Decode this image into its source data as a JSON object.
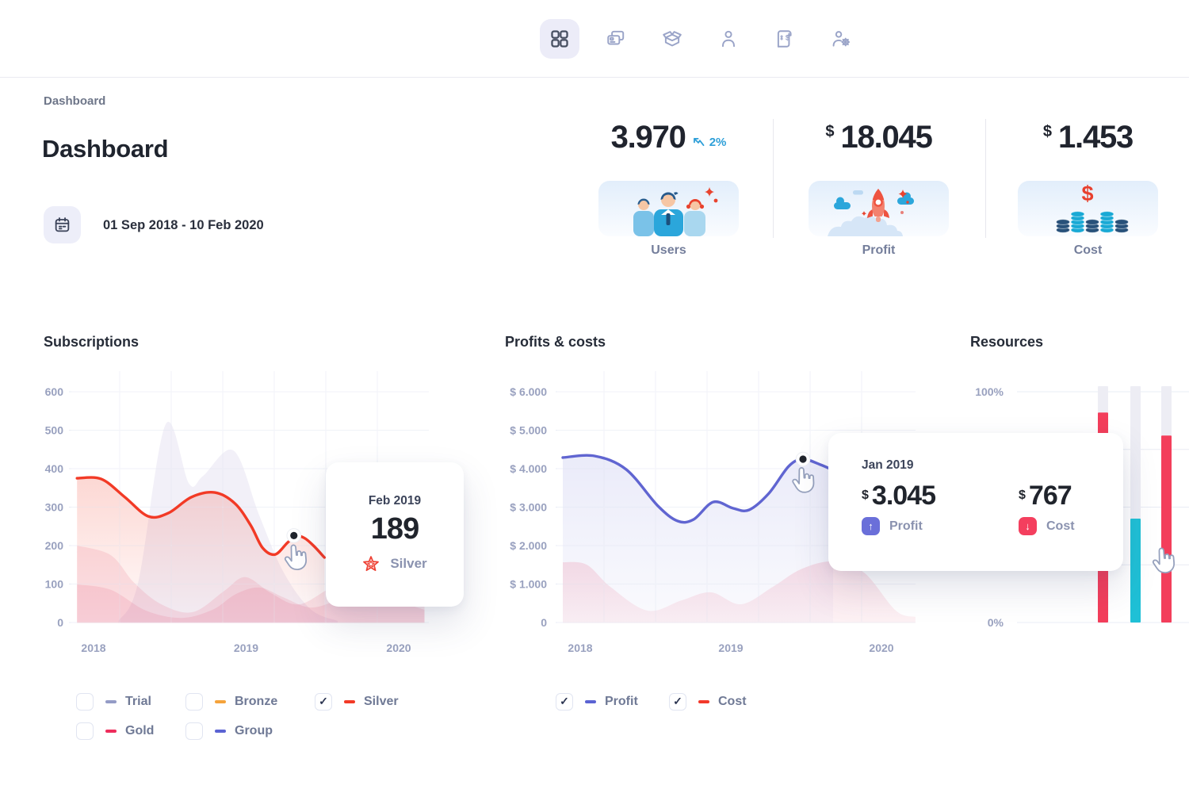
{
  "ui": {
    "checkmark": "✓"
  },
  "theme": {
    "accent_red": "#f23a26",
    "accent_crimson": "#ee2d5c",
    "accent_indigo": "#5b63d3",
    "accent_cyan": "#1fc0d6",
    "accent_orange": "#f5a33b",
    "muted_blue": "#949cc6",
    "delta_blue": "#2e9fd8",
    "badge_profit": "#6a6fd9",
    "badge_cost": "#f43f5e"
  },
  "nav": {
    "items": [
      {
        "icon": "grid-icon",
        "active": true
      },
      {
        "icon": "cards-icon",
        "active": false
      },
      {
        "icon": "open-box-icon",
        "active": false
      },
      {
        "icon": "person-icon",
        "active": false
      },
      {
        "icon": "receipt-icon",
        "active": false
      },
      {
        "icon": "user-gear-icon",
        "active": false
      }
    ]
  },
  "breadcrumb": "Dashboard",
  "page": {
    "title": "Dashboard",
    "date_range": "01 Sep 2018 - 10 Feb 2020"
  },
  "stats": {
    "users": {
      "value": "3.970",
      "delta": "2%",
      "label": "Users"
    },
    "profit": {
      "currency": "$",
      "value": "18.045",
      "label": "Profit"
    },
    "cost": {
      "currency": "$",
      "value": "1.453",
      "label": "Cost"
    }
  },
  "chart_data": [
    {
      "type": "area",
      "title": "Subscriptions",
      "x_ticks": [
        "2018",
        "2019",
        "2020"
      ],
      "x_tick_years": [
        2018,
        2019,
        2020
      ],
      "ylim": [
        0,
        600
      ],
      "y_ticks": [
        0,
        100,
        200,
        300,
        400,
        500,
        600
      ],
      "series": [
        {
          "name": "Silver",
          "color": "#f23a26",
          "points": [
            [
              2017.892,
              375
            ],
            [
              2018.051,
              373
            ],
            [
              2018.205,
              326
            ],
            [
              2018.359,
              276
            ],
            [
              2018.492,
              285
            ],
            [
              2018.641,
              326
            ],
            [
              2018.795,
              338
            ],
            [
              2018.928,
              309
            ],
            [
              2019.031,
              252
            ],
            [
              2019.108,
              194
            ],
            [
              2019.19,
              177
            ],
            [
              2019.272,
              208
            ],
            [
              2019.328,
              225
            ],
            [
              2019.385,
              219
            ],
            [
              2019.446,
              198
            ],
            [
              2019.513,
              169
            ]
          ]
        }
      ],
      "background_areas": [
        {
          "name": "ghost-area-lavender",
          "color": "rgba(124,104,190,0.10)",
          "points": [
            [
              2018.164,
              4
            ],
            [
              2018.292,
              103
            ],
            [
              2018.472,
              515
            ],
            [
              2018.626,
              361
            ],
            [
              2018.718,
              381
            ],
            [
              2018.918,
              447
            ],
            [
              2019.087,
              278
            ],
            [
              2019.241,
              134
            ],
            [
              2019.421,
              35
            ],
            [
              2019.6,
              4
            ]
          ]
        },
        {
          "name": "ghost-area-rose-1",
          "color": "rgba(229,88,124,0.15)",
          "points": [
            [
              2017.892,
              200
            ],
            [
              2018.113,
              175
            ],
            [
              2018.267,
              103
            ],
            [
              2018.446,
              47
            ],
            [
              2018.651,
              27
            ],
            [
              2018.856,
              82
            ],
            [
              2018.995,
              118
            ],
            [
              2019.164,
              76
            ],
            [
              2019.344,
              47
            ],
            [
              2019.549,
              89
            ],
            [
              2019.754,
              126
            ],
            [
              2019.959,
              78
            ],
            [
              2020.169,
              43
            ]
          ]
        },
        {
          "name": "ghost-area-rose-2",
          "color": "rgba(229,88,124,0.15)",
          "points": [
            [
              2017.892,
              99
            ],
            [
              2018.113,
              85
            ],
            [
              2018.344,
              31
            ],
            [
              2018.574,
              12
            ],
            [
              2018.779,
              33
            ],
            [
              2018.933,
              74
            ],
            [
              2019.087,
              91
            ],
            [
              2019.241,
              66
            ],
            [
              2019.421,
              39
            ],
            [
              2019.6,
              58
            ],
            [
              2019.805,
              85
            ],
            [
              2020.01,
              54
            ],
            [
              2020.169,
              33
            ]
          ]
        }
      ],
      "marker": {
        "x": 2019.313,
        "value": 226
      },
      "tooltip": {
        "date": "Feb 2019",
        "value": "189",
        "series": "Silver"
      },
      "legend": [
        {
          "label": "Trial",
          "checked": false,
          "color": "#949cc6"
        },
        {
          "label": "Bronze",
          "checked": false,
          "color": "#f5a33b"
        },
        {
          "label": "Silver",
          "checked": true,
          "color": "#f23a26"
        },
        {
          "label": "Gold",
          "checked": false,
          "color": "#ee2d5c"
        },
        {
          "label": "Group",
          "checked": false,
          "color": "#5b63d3"
        }
      ]
    },
    {
      "type": "line",
      "title": "Profits & costs",
      "x_ticks": [
        "2018",
        "2019",
        "2020"
      ],
      "x_tick_years": [
        2018,
        2019,
        2020
      ],
      "ylim": [
        0,
        6000
      ],
      "y_ticks": [
        0,
        1000,
        2000,
        3000,
        4000,
        5000,
        6000
      ],
      "y_tick_labels": [
        "0",
        "$ 1.000",
        "$ 2.000",
        "$ 3.000",
        "$ 4.000",
        "$ 5.000",
        "$ 6.000"
      ],
      "series": [
        {
          "name": "Profit",
          "color": "#6065d1",
          "fill": "gProfit",
          "line": true,
          "points": [
            [
              2017.884,
              4289
            ],
            [
              2018.095,
              4330
            ],
            [
              2018.305,
              3979
            ],
            [
              2018.516,
              3031
            ],
            [
              2018.647,
              2639
            ],
            [
              2018.753,
              2680
            ],
            [
              2018.884,
              3134
            ],
            [
              2019.016,
              2969
            ],
            [
              2019.121,
              2928
            ],
            [
              2019.253,
              3361
            ],
            [
              2019.384,
              4062
            ],
            [
              2019.479,
              4247
            ],
            [
              2019.595,
              4103
            ],
            [
              2019.679,
              3959
            ]
          ]
        },
        {
          "name": "Cost",
          "color": "#f33e5b",
          "fill": "gCost",
          "line": false,
          "points": [
            [
              2017.884,
              1567
            ],
            [
              2018.042,
              1505
            ],
            [
              2018.2,
              928
            ],
            [
              2018.447,
              309
            ],
            [
              2018.674,
              577
            ],
            [
              2018.868,
              784
            ],
            [
              2019.068,
              474
            ],
            [
              2019.279,
              928
            ],
            [
              2019.463,
              1381
            ],
            [
              2019.674,
              1588
            ],
            [
              2019.884,
              1299
            ],
            [
              2020.095,
              309
            ],
            [
              2020.226,
              144
            ]
          ]
        }
      ],
      "marker": {
        "x": 2019.479,
        "value": 4247
      },
      "tooltip": {
        "date": "Jan 2019",
        "currency": "$",
        "profit_value": "3.045",
        "profit_label": "Profit",
        "profit_arrow": "↑",
        "cost_value": "767",
        "cost_label": "Cost",
        "cost_arrow": "↓"
      },
      "legend": [
        {
          "label": "Profit",
          "checked": true,
          "color": "#5b63d3"
        },
        {
          "label": "Cost",
          "checked": true,
          "color": "#f2392b"
        }
      ]
    },
    {
      "type": "bar",
      "title": "Resources",
      "ylim": [
        0,
        100
      ],
      "y_tick_labels": [
        "0%",
        "100%"
      ],
      "bars": [
        {
          "value": 91,
          "color": "#f33e5b"
        },
        {
          "value": 45,
          "color": "#1fc0d6"
        },
        {
          "value": 81,
          "color": "#f33e5b"
        }
      ]
    }
  ]
}
